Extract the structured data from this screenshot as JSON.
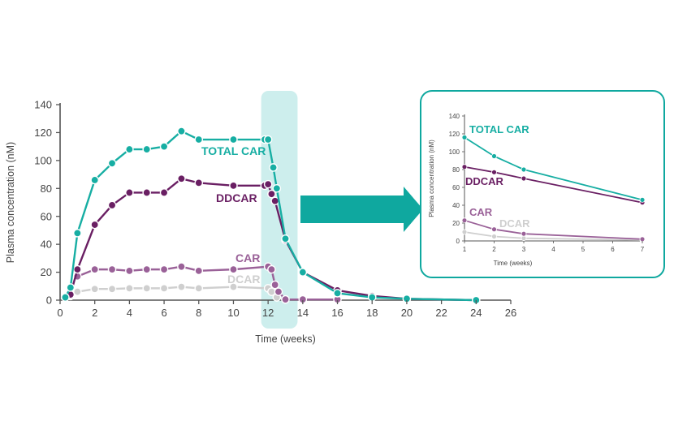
{
  "colors": {
    "total_car": "#17aea3",
    "ddcar": "#6a1f63",
    "car": "#9a6198",
    "dcar": "#cfcfcf",
    "highlight": "#cdeeed",
    "arrow": "#0fa89f",
    "axis": "#555555",
    "text": "#444444"
  },
  "chart_data": [
    {
      "type": "line",
      "xlabel": "Time (weeks)",
      "ylabel": "Plasma concentration (nM)",
      "xlim": [
        0,
        26
      ],
      "ylim": [
        0,
        140
      ],
      "xticks": [
        0,
        2,
        4,
        6,
        8,
        10,
        12,
        14,
        16,
        18,
        20,
        22,
        24,
        26
      ],
      "yticks": [
        0,
        20,
        40,
        60,
        80,
        100,
        120,
        140
      ],
      "highlight_range": [
        11.6,
        13.7
      ],
      "series": [
        {
          "name": "TOTAL CAR",
          "color_key": "total_car",
          "points": [
            [
              0.3,
              2
            ],
            [
              0.6,
              9
            ],
            [
              1,
              48
            ],
            [
              2,
              86
            ],
            [
              3,
              98
            ],
            [
              4,
              108
            ],
            [
              5,
              108
            ],
            [
              6,
              110
            ],
            [
              7,
              121
            ],
            [
              8,
              115
            ],
            [
              10,
              115
            ],
            [
              11.8,
              115
            ],
            [
              12,
              115
            ],
            [
              12.3,
              95
            ],
            [
              12.5,
              80
            ],
            [
              13,
              44
            ],
            [
              14,
              20
            ],
            [
              16,
              5
            ],
            [
              18,
              2
            ],
            [
              20,
              1
            ],
            [
              24,
              0
            ]
          ]
        },
        {
          "name": "DDCAR",
          "color_key": "ddcar",
          "points": [
            [
              0.3,
              2
            ],
            [
              0.6,
              4
            ],
            [
              1,
              22
            ],
            [
              2,
              54
            ],
            [
              3,
              68
            ],
            [
              4,
              77
            ],
            [
              5,
              77
            ],
            [
              6,
              77
            ],
            [
              7,
              87
            ],
            [
              8,
              84
            ],
            [
              10,
              82
            ],
            [
              11.8,
              82
            ],
            [
              12,
              83
            ],
            [
              12.2,
              76
            ],
            [
              12.4,
              71
            ],
            [
              13,
              43
            ],
            [
              14,
              20
            ],
            [
              16,
              7
            ],
            [
              18,
              3
            ],
            [
              20,
              1
            ],
            [
              24,
              0
            ]
          ]
        },
        {
          "name": "CAR",
          "color_key": "car",
          "points": [
            [
              1,
              17
            ],
            [
              2,
              22
            ],
            [
              3,
              22
            ],
            [
              4,
              21
            ],
            [
              5,
              22
            ],
            [
              6,
              22
            ],
            [
              7,
              24
            ],
            [
              8,
              21
            ],
            [
              10,
              22
            ],
            [
              12,
              24
            ],
            [
              12.2,
              22
            ],
            [
              12.4,
              11
            ],
            [
              12.6,
              6
            ],
            [
              13,
              0.5
            ],
            [
              14,
              0.5
            ],
            [
              16,
              0.5
            ]
          ]
        },
        {
          "name": "DCAR",
          "color_key": "dcar",
          "points": [
            [
              0.6,
              3
            ],
            [
              1,
              6
            ],
            [
              2,
              8
            ],
            [
              3,
              8
            ],
            [
              4,
              8.5
            ],
            [
              5,
              8.5
            ],
            [
              6,
              8.5
            ],
            [
              7,
              9.5
            ],
            [
              8,
              8.5
            ],
            [
              10,
              9.5
            ],
            [
              12,
              8.5
            ],
            [
              12.2,
              6
            ],
            [
              12.5,
              2
            ],
            [
              13,
              0.5
            ]
          ]
        }
      ],
      "labels": [
        {
          "text": "TOTAL CAR",
          "color_key": "total_car"
        },
        {
          "text": "DDCAR",
          "color_key": "ddcar"
        },
        {
          "text": "CAR",
          "color_key": "car"
        },
        {
          "text": "DCAR",
          "color_key": "dcar"
        }
      ]
    },
    {
      "type": "line",
      "xlabel": "Time (weeks)",
      "ylabel": "Plasma concentration (nM)",
      "xlim": [
        1,
        7
      ],
      "ylim": [
        0,
        140
      ],
      "xticks": [
        1,
        2,
        3,
        4,
        5,
        6,
        7
      ],
      "yticks": [
        0,
        20,
        40,
        60,
        80,
        100,
        120,
        140
      ],
      "series": [
        {
          "name": "TOTAL CAR",
          "color_key": "total_car",
          "points": [
            [
              1,
              116
            ],
            [
              2,
              95
            ],
            [
              3,
              80
            ],
            [
              7,
              46
            ]
          ]
        },
        {
          "name": "DDCAR",
          "color_key": "ddcar",
          "points": [
            [
              1,
              83
            ],
            [
              2,
              77
            ],
            [
              3,
              70
            ],
            [
              7,
              43
            ]
          ]
        },
        {
          "name": "CAR",
          "color_key": "car",
          "points": [
            [
              1,
              23
            ],
            [
              2,
              13
            ],
            [
              3,
              8
            ],
            [
              7,
              2
            ]
          ]
        },
        {
          "name": "DCAR",
          "color_key": "dcar",
          "points": [
            [
              1,
              10
            ],
            [
              2,
              5
            ],
            [
              3,
              3
            ],
            [
              7,
              1
            ]
          ]
        }
      ],
      "labels": [
        {
          "text": "TOTAL CAR",
          "color_key": "total_car"
        },
        {
          "text": "DDCAR",
          "color_key": "ddcar"
        },
        {
          "text": "CAR",
          "color_key": "car"
        },
        {
          "text": "DCAR",
          "color_key": "dcar"
        }
      ]
    }
  ]
}
